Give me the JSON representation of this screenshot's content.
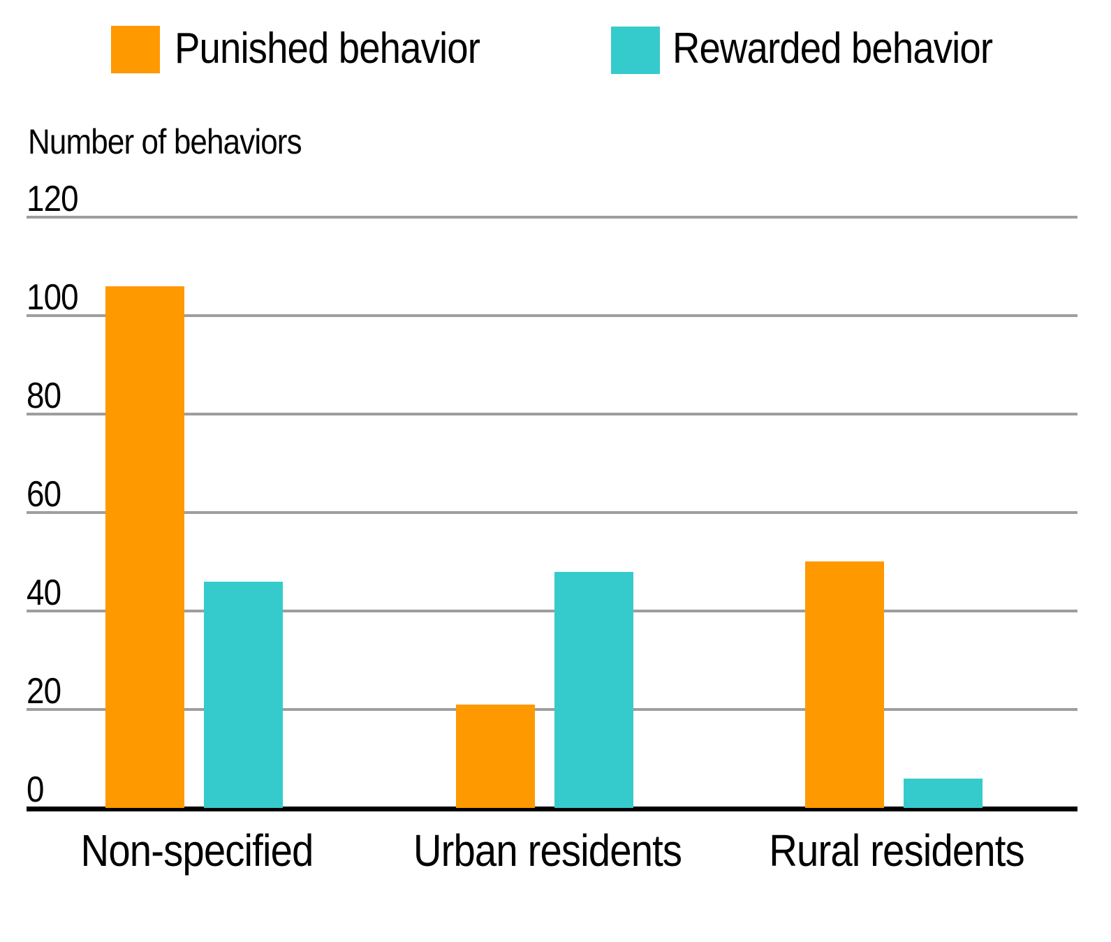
{
  "legend": {
    "items": [
      {
        "label": "Punished behavior",
        "color": "#FF9900"
      },
      {
        "label": "Rewarded behavior",
        "color": "#35CBCD"
      }
    ]
  },
  "chart_data": {
    "type": "bar",
    "title": "",
    "xlabel": "",
    "ylabel": "Number of behaviors",
    "categories": [
      "Non-specified",
      "Urban residents",
      "Rural residents"
    ],
    "series": [
      {
        "name": "Punished behavior",
        "color": "#FF9900",
        "values": [
          106,
          21,
          50
        ]
      },
      {
        "name": "Rewarded behavior",
        "color": "#35CBCD",
        "values": [
          46,
          48,
          6
        ]
      }
    ],
    "yticks": [
      0,
      20,
      40,
      60,
      80,
      100,
      120
    ],
    "ylim": [
      0,
      120
    ],
    "grid": "horizontal-gridlines",
    "gridline_color": "#9E9E9E",
    "axis_line_color": "#000000",
    "legend_position": "top"
  }
}
